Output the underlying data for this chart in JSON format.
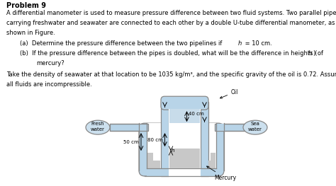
{
  "bg_color": "#ffffff",
  "text_color": "#000000",
  "pipe_color": "#b8d4e8",
  "pipe_edge_color": "#888888",
  "mercury_color": "#c8c8c8",
  "label_fresh": "Fresh\nwater",
  "label_sea": "Sea\nwater",
  "label_mercury": "Mercury",
  "label_oil": "Oil",
  "label_40cm": "40 cm",
  "label_80cm": "80 cm",
  "label_50cm": "50 cm",
  "label_h": "h",
  "fs_title": 7.0,
  "fs_body": 6.0
}
